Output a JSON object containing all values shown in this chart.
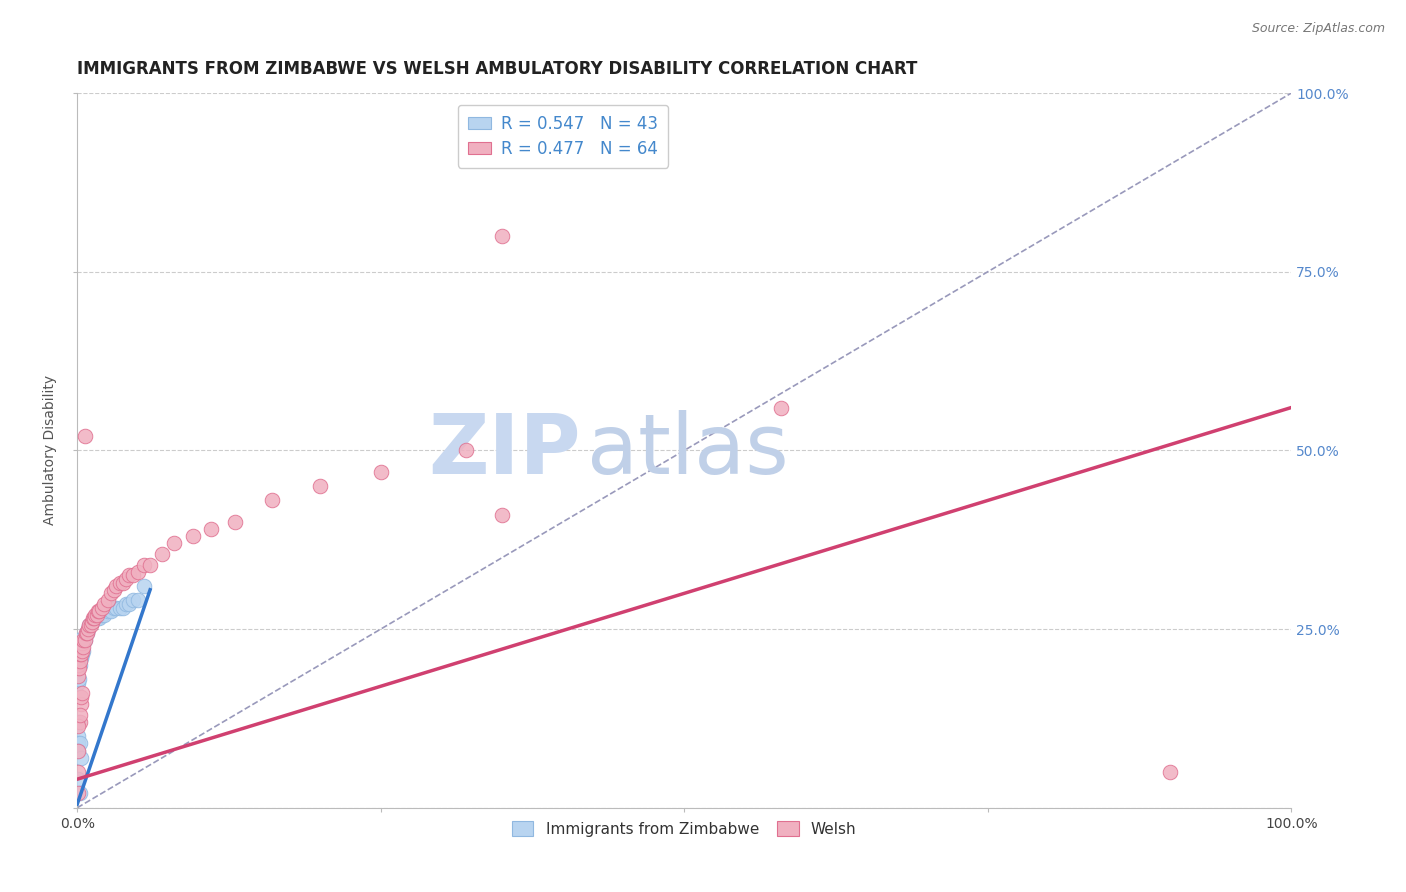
{
  "title": "IMMIGRANTS FROM ZIMBABWE VS WELSH AMBULATORY DISABILITY CORRELATION CHART",
  "source_text": "Source: ZipAtlas.com",
  "ylabel": "Ambulatory Disability",
  "background_color": "#ffffff",
  "grid_color": "#cccccc",
  "grid_style": "--",
  "watermark_part1": "ZIP",
  "watermark_part2": "atlas",
  "xlim": [
    0,
    1
  ],
  "ylim": [
    0,
    1
  ],
  "right_yticks": [
    0.0,
    0.25,
    0.5,
    0.75,
    1.0
  ],
  "right_yticklabels": [
    "",
    "25.0%",
    "50.0%",
    "75.0%",
    "100.0%"
  ],
  "xtick_positions": [
    0.0,
    0.25,
    0.5,
    0.75,
    1.0
  ],
  "xtick_labels": [
    "0.0%",
    "",
    "",
    "",
    "100.0%"
  ],
  "right_tick_color": "#5588cc",
  "title_fontsize": 12,
  "axis_label_fontsize": 10,
  "tick_fontsize": 10,
  "legend_fontsize": 12,
  "watermark_color1": "#c8d8f0",
  "watermark_color2": "#c0d0e8",
  "watermark_fontsize": 60,
  "series": [
    {
      "name": "Immigrants from Zimbabwe",
      "color": "#b8d4f0",
      "edge_color": "#90b8e0",
      "line_color": "#3377cc",
      "line_x": [
        0.0,
        0.06
      ],
      "line_y": [
        0.005,
        0.305
      ],
      "points_x": [
        0.0005,
        0.001,
        0.001,
        0.001,
        0.0015,
        0.002,
        0.002,
        0.002,
        0.003,
        0.003,
        0.004,
        0.004,
        0.005,
        0.006,
        0.007,
        0.008,
        0.009,
        0.01,
        0.012,
        0.014,
        0.016,
        0.018,
        0.02,
        0.022,
        0.025,
        0.028,
        0.03,
        0.032,
        0.035,
        0.038,
        0.04,
        0.043,
        0.046,
        0.05,
        0.055,
        0.001,
        0.001,
        0.0005,
        0.002,
        0.001,
        0.003,
        0.001,
        0.002
      ],
      "points_y": [
        0.195,
        0.175,
        0.215,
        0.235,
        0.18,
        0.2,
        0.215,
        0.225,
        0.21,
        0.225,
        0.215,
        0.23,
        0.22,
        0.235,
        0.245,
        0.245,
        0.25,
        0.255,
        0.26,
        0.265,
        0.265,
        0.265,
        0.27,
        0.27,
        0.275,
        0.275,
        0.28,
        0.28,
        0.28,
        0.28,
        0.285,
        0.285,
        0.29,
        0.29,
        0.31,
        0.12,
        0.1,
        0.09,
        0.09,
        0.08,
        0.07,
        0.04,
        0.02
      ]
    },
    {
      "name": "Welsh",
      "color": "#f0b0c0",
      "edge_color": "#e07090",
      "line_color": "#d04070",
      "line_x": [
        0.0,
        1.0
      ],
      "line_y": [
        0.04,
        0.56
      ],
      "points_x": [
        0.0005,
        0.001,
        0.001,
        0.001,
        0.0015,
        0.002,
        0.002,
        0.002,
        0.003,
        0.003,
        0.004,
        0.004,
        0.005,
        0.005,
        0.006,
        0.007,
        0.008,
        0.009,
        0.01,
        0.011,
        0.012,
        0.013,
        0.014,
        0.015,
        0.016,
        0.017,
        0.018,
        0.02,
        0.022,
        0.025,
        0.028,
        0.03,
        0.032,
        0.035,
        0.038,
        0.04,
        0.043,
        0.046,
        0.05,
        0.055,
        0.06,
        0.07,
        0.08,
        0.095,
        0.11,
        0.13,
        0.16,
        0.2,
        0.25,
        0.32,
        0.35,
        0.58,
        0.002,
        0.001,
        0.003,
        0.002,
        0.003,
        0.004,
        0.001,
        0.001,
        0.9,
        0.35,
        0.001,
        0.006
      ],
      "points_y": [
        0.195,
        0.185,
        0.2,
        0.21,
        0.195,
        0.205,
        0.215,
        0.225,
        0.215,
        0.225,
        0.22,
        0.23,
        0.225,
        0.235,
        0.235,
        0.245,
        0.245,
        0.25,
        0.255,
        0.255,
        0.26,
        0.265,
        0.265,
        0.27,
        0.27,
        0.275,
        0.275,
        0.28,
        0.285,
        0.29,
        0.3,
        0.305,
        0.31,
        0.315,
        0.315,
        0.32,
        0.325,
        0.325,
        0.33,
        0.34,
        0.34,
        0.355,
        0.37,
        0.38,
        0.39,
        0.4,
        0.43,
        0.45,
        0.47,
        0.5,
        0.41,
        0.56,
        0.12,
        0.115,
        0.145,
        0.13,
        0.155,
        0.16,
        0.08,
        0.05,
        0.05,
        0.8,
        0.02,
        0.52
      ]
    }
  ],
  "ref_line": {
    "x": [
      0,
      1
    ],
    "y": [
      0,
      1
    ],
    "color": "#9999bb",
    "linestyle": "--",
    "linewidth": 1.2
  }
}
